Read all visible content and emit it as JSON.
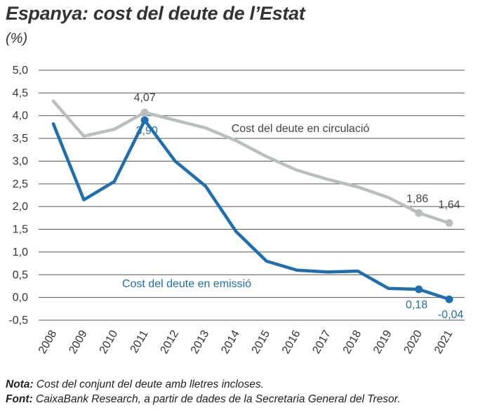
{
  "title": "Espanya: cost del deute de l’Estat",
  "unit": "(%)",
  "notes": {
    "nota_label": "Nota:",
    "nota_text": " Cost del conjunt del deute amb lletres incloses.",
    "font_label": "Font:",
    "font_text": " CaixaBank Research, a partir de dades de la Secretaria General del Tresor."
  },
  "chart_data": {
    "type": "line",
    "categories": [
      "2008",
      "2009",
      "2010",
      "2011",
      "2012",
      "2013",
      "2014",
      "2015",
      "2016",
      "2017",
      "2018",
      "2019",
      "2020",
      "2021"
    ],
    "ylim": [
      -0.5,
      5.0
    ],
    "yticks": [
      "-0,5",
      "0,0",
      "0,5",
      "1,0",
      "1,5",
      "2,0",
      "2,5",
      "3,0",
      "3,5",
      "4,0",
      "4,5",
      "5,0"
    ],
    "grid": true,
    "series": [
      {
        "name": "Cost del deute en circulació",
        "color": "#b9bfbf",
        "values": [
          4.32,
          3.55,
          3.7,
          4.07,
          3.9,
          3.73,
          3.45,
          3.1,
          2.8,
          2.6,
          2.43,
          2.2,
          1.86,
          1.64
        ],
        "labels": [
          {
            "index": 3,
            "text": "4,07"
          },
          {
            "index": 12,
            "text": "1,86"
          },
          {
            "index": 13,
            "text": "1,64"
          }
        ]
      },
      {
        "name": "Cost del deute en emissió",
        "color": "#1f6eae",
        "values": [
          3.82,
          2.15,
          2.55,
          3.9,
          3.0,
          2.45,
          1.45,
          0.8,
          0.6,
          0.56,
          0.58,
          0.2,
          0.18,
          -0.04
        ],
        "labels": [
          {
            "index": 3,
            "text": "3,90"
          },
          {
            "index": 12,
            "text": "0,18"
          },
          {
            "index": 13,
            "text": "-0,04"
          }
        ]
      }
    ]
  }
}
